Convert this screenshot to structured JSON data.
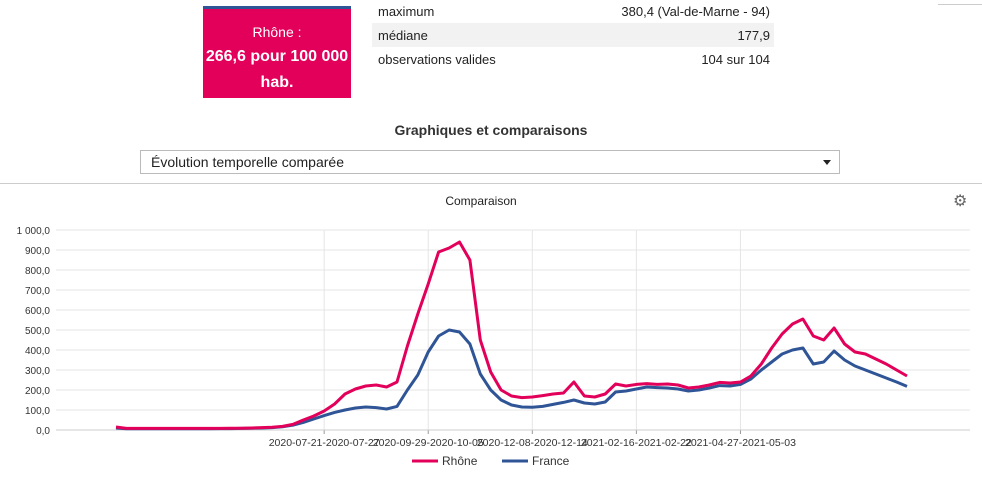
{
  "stat_card": {
    "label": "Rhône :",
    "value": "266,6 pour 100 000 hab."
  },
  "stats": [
    {
      "label": "maximum",
      "value": "380,4 (Val-de-Marne - 94)"
    },
    {
      "label": "médiane",
      "value": "177,9"
    },
    {
      "label": "observations valides",
      "value": "104 sur 104"
    }
  ],
  "section_title": "Graphiques et comparaisons",
  "select": {
    "value": "Évolution temporelle comparée"
  },
  "chart_title": "Comparaison",
  "settings_icon": "gear-icon",
  "colors": {
    "accent": "#e2005a",
    "rhone": "#e2005a",
    "france": "#2f5597"
  },
  "chart_data": {
    "type": "line",
    "title": "Comparaison",
    "xlabel": "",
    "ylabel": "",
    "ylim": [
      0,
      1000
    ],
    "y_ticks": [
      "0,0",
      "100,0",
      "200,0",
      "300,0",
      "400,0",
      "500,0",
      "600,0",
      "700,0",
      "800,0",
      "900,0",
      "1 000,0"
    ],
    "x_ticks": [
      "2020-07-21-2020-07-27",
      "2020-09-29-2020-10-05",
      "2020-12-08-2020-12-14",
      "2021-02-16-2021-02-22",
      "2021-04-27-2021-05-03"
    ],
    "x_tick_index": [
      20,
      30,
      40,
      50,
      60
    ],
    "legend_position": "bottom",
    "series": [
      {
        "name": "Rhône",
        "color": "#e2005a",
        "values": [
          15,
          8,
          8,
          8,
          8,
          8,
          8,
          8,
          8,
          8,
          8,
          9,
          9,
          10,
          12,
          14,
          18,
          28,
          50,
          70,
          95,
          130,
          180,
          205,
          220,
          225,
          215,
          240,
          420,
          580,
          730,
          890,
          910,
          940,
          850,
          450,
          290,
          200,
          170,
          162,
          165,
          172,
          180,
          185,
          240,
          170,
          165,
          180,
          230,
          220,
          228,
          232,
          228,
          230,
          225,
          210,
          215,
          225,
          238,
          235,
          240,
          270,
          330,
          410,
          480,
          530,
          555,
          470,
          450,
          510,
          430,
          390,
          380,
          355,
          330,
          300,
          270
        ]
      },
      {
        "name": "France",
        "color": "#2f5597",
        "values": [
          10,
          6,
          6,
          6,
          6,
          6,
          6,
          6,
          6,
          6,
          7,
          7,
          8,
          9,
          10,
          12,
          16,
          24,
          38,
          55,
          72,
          88,
          100,
          110,
          115,
          112,
          105,
          118,
          200,
          275,
          390,
          470,
          500,
          490,
          430,
          280,
          200,
          150,
          125,
          115,
          114,
          118,
          128,
          138,
          150,
          135,
          130,
          140,
          190,
          195,
          205,
          215,
          212,
          210,
          205,
          195,
          200,
          210,
          222,
          220,
          228,
          255,
          300,
          340,
          380,
          400,
          410,
          330,
          340,
          395,
          350,
          320,
          300,
          280,
          260,
          240,
          218
        ]
      }
    ]
  }
}
